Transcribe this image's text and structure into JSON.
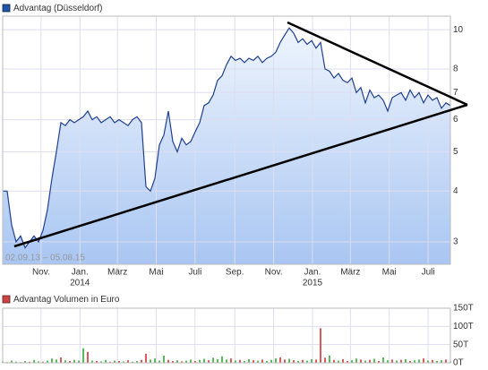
{
  "chart_data": [
    {
      "type": "area",
      "title": "Advantag (Düsseldorf)",
      "subtitle": "02.09.13 – 05.08.15",
      "log_scale": true,
      "grid": true,
      "color": "#1f3f8f",
      "legend_color": "#2255aa",
      "xlim": [
        0,
        100.3
      ],
      "xticks": [
        {
          "value": 8.6,
          "label": "Nov."
        },
        {
          "value": 17.3,
          "label": "Jan.",
          "year": "2014"
        },
        {
          "value": 25.7,
          "label": "März"
        },
        {
          "value": 34.4,
          "label": "Mai"
        },
        {
          "value": 43.1,
          "label": "Juli"
        },
        {
          "value": 52,
          "label": "Sep."
        },
        {
          "value": 60.7,
          "label": "Nov."
        },
        {
          "value": 69.4,
          "label": "Jan.",
          "year": "2015"
        },
        {
          "value": 77.9,
          "label": "März"
        },
        {
          "value": 86.6,
          "label": "Mai"
        },
        {
          "value": 95.3,
          "label": "Juli"
        }
      ],
      "ylim": [
        2.64,
        10.8
      ],
      "yticks": [
        3,
        4,
        5,
        6,
        7,
        8,
        10
      ],
      "values": [
        4.0,
        4.0,
        3.3,
        3.0,
        3.1,
        2.9,
        3.0,
        3.1,
        3.0,
        3.2,
        3.6,
        4.3,
        5.0,
        5.9,
        5.8,
        6.0,
        5.9,
        6.0,
        6.1,
        6.3,
        6.0,
        6.1,
        5.9,
        6.0,
        6.1,
        5.9,
        6.0,
        5.9,
        5.8,
        6.0,
        6.1,
        5.9,
        4.1,
        4.0,
        4.3,
        5.2,
        5.5,
        6.3,
        5.3,
        5.0,
        5.4,
        5.2,
        5.3,
        5.6,
        5.9,
        6.5,
        6.6,
        6.9,
        7.5,
        7.7,
        8.2,
        8.6,
        8.4,
        8.5,
        8.3,
        8.5,
        8.4,
        8.6,
        8.3,
        8.5,
        8.6,
        8.8,
        9.3,
        9.7,
        10.1,
        9.8,
        9.3,
        9.5,
        9.2,
        9.4,
        9.0,
        9.3,
        8.0,
        7.9,
        7.6,
        7.8,
        7.5,
        7.4,
        7.6,
        7.0,
        7.2,
        6.6,
        7.1,
        6.8,
        6.9,
        6.7,
        6.3,
        6.8,
        6.9,
        7.0,
        6.7,
        7.1,
        6.8,
        7.0,
        6.6,
        6.9,
        6.7,
        6.8,
        6.4,
        6.6,
        6.5
      ]
    },
    {
      "type": "bar",
      "title": "Advantag Volumen in Euro",
      "legend_color": "#cc4444",
      "grid": true,
      "xlim": [
        0,
        100.3
      ],
      "ylim": [
        0,
        150
      ],
      "yticks": [
        {
          "value": 0,
          "label": "0T"
        },
        {
          "value": 50,
          "label": "50T"
        },
        {
          "value": 100,
          "label": "100T"
        },
        {
          "value": 150,
          "label": "150T"
        }
      ],
      "values": [
        4,
        2,
        6,
        3,
        2,
        5,
        3,
        8,
        4,
        3,
        6,
        12,
        9,
        15,
        7,
        5,
        8,
        6,
        40,
        30,
        6,
        5,
        4,
        8,
        3,
        6,
        5,
        4,
        7,
        3,
        5,
        8,
        25,
        9,
        12,
        6,
        20,
        8,
        5,
        7,
        4,
        6,
        9,
        5,
        8,
        11,
        7,
        14,
        10,
        18,
        9,
        12,
        6,
        8,
        5,
        10,
        7,
        6,
        9,
        5,
        8,
        12,
        15,
        9,
        11,
        7,
        5,
        8,
        6,
        10,
        9,
        95,
        14,
        20,
        8,
        6,
        10,
        5,
        7,
        12,
        9,
        6,
        8,
        11,
        5,
        15,
        7,
        9,
        6,
        8,
        10,
        5,
        7,
        9,
        12,
        6,
        8,
        5,
        7,
        9,
        4
      ],
      "colors": [
        "#3a3",
        "#c33",
        "#3a3",
        "#3a3",
        "#c33",
        "#3a3",
        "#c33",
        "#3a3",
        "#3a3",
        "#c33",
        "#3a3",
        "#3a3",
        "#3a3",
        "#c33",
        "#3a3",
        "#c33",
        "#3a3",
        "#3a3",
        "#3a3",
        "#c33",
        "#3a3",
        "#c33",
        "#3a3",
        "#3a3",
        "#c33",
        "#3a3",
        "#c33",
        "#3a3",
        "#c33",
        "#3a3",
        "#3a3",
        "#c33",
        "#c33",
        "#3a3",
        "#3a3",
        "#3a3",
        "#3a3",
        "#c33",
        "#c33",
        "#3a3",
        "#c33",
        "#3a3",
        "#3a3",
        "#c33",
        "#3a3",
        "#3a3",
        "#c33",
        "#3a3",
        "#3a3",
        "#3a3",
        "#3a3",
        "#c33",
        "#3a3",
        "#c33",
        "#3a3",
        "#3a3",
        "#c33",
        "#3a3",
        "#c33",
        "#3a3",
        "#3a3",
        "#3a3",
        "#c33",
        "#c33",
        "#3a3",
        "#c33",
        "#3a3",
        "#c33",
        "#3a3",
        "#3a3",
        "#c33",
        "#c33",
        "#c33",
        "#3a3",
        "#c33",
        "#3a3",
        "#c33",
        "#c33",
        "#3a3",
        "#3a3",
        "#c33",
        "#3a3",
        "#c33",
        "#3a3",
        "#c33",
        "#3a3",
        "#3a3",
        "#c33",
        "#3a3",
        "#c33",
        "#3a3",
        "#c33",
        "#3a3",
        "#3a3",
        "#c33",
        "#3a3",
        "#c33",
        "#3a3",
        "#3a3",
        "#c33",
        "#3a3"
      ]
    }
  ]
}
